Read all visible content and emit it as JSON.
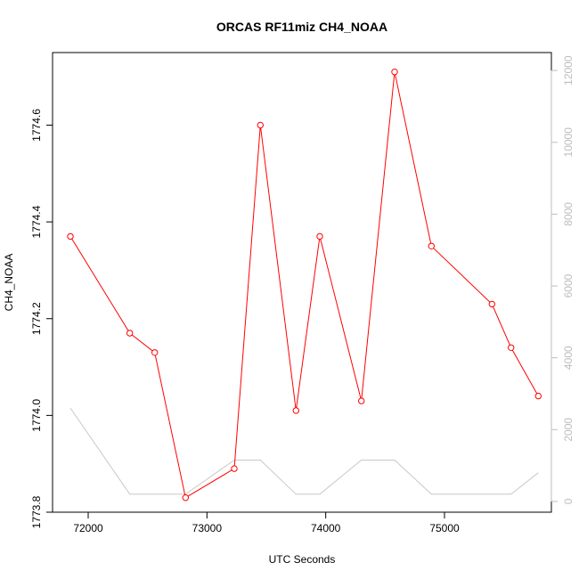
{
  "chart_data": {
    "type": "line",
    "title": "ORCAS RF11miz CH4_NOAA",
    "xlabel": "UTC Seconds",
    "ylabel": "CH4_NOAA",
    "xlim": [
      71700,
      75900
    ],
    "ylim": [
      1773.8,
      1774.75
    ],
    "y2lim": [
      -300,
      12500
    ],
    "xticks": [
      72000,
      73000,
      74000,
      75000
    ],
    "yticks": [
      1773.8,
      1774.0,
      1774.2,
      1774.4,
      1774.6
    ],
    "ytick_labels": [
      "1773.8",
      "1774.0",
      "1774.2",
      "1774.4",
      "1774.6"
    ],
    "y2ticks": [
      0,
      2000,
      4000,
      6000,
      8000,
      10000,
      12000
    ],
    "grid": false,
    "series": [
      {
        "axis": "left",
        "style": "line+points",
        "color": "#ff0000",
        "x": [
          71850,
          72350,
          72560,
          72820,
          73230,
          73450,
          73750,
          73950,
          74300,
          74580,
          74890,
          75400,
          75560,
          75790
        ],
        "y": [
          1774.37,
          1774.17,
          1774.13,
          1773.83,
          1773.89,
          1774.6,
          1774.01,
          1774.37,
          1774.03,
          1774.71,
          1774.35,
          1774.23,
          1774.14,
          1774.04
        ]
      },
      {
        "axis": "right",
        "style": "line",
        "color": "#c8c8c8",
        "x": [
          71850,
          72350,
          72820,
          73230,
          73450,
          73750,
          73950,
          74300,
          74580,
          74890,
          75560,
          75790
        ],
        "y": [
          2600,
          200,
          200,
          1150,
          1150,
          200,
          200,
          1150,
          1150,
          200,
          200,
          800
        ]
      }
    ]
  }
}
